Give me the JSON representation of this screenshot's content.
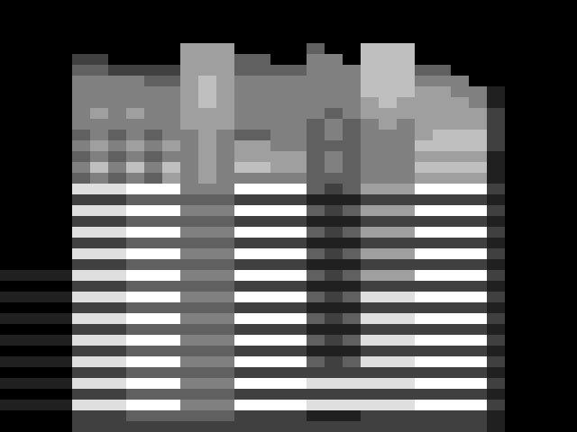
{
  "chart_data": {
    "type": "heatmap",
    "color": "gray",
    "tick_labels": false,
    "cells": [
      [
        0,
        0,
        0,
        0,
        0,
        0,
        0,
        0,
        0,
        0,
        0,
        0,
        0,
        0,
        0,
        0,
        0,
        0,
        0,
        0,
        0,
        0,
        0,
        0,
        0,
        0,
        0,
        0,
        0,
        0,
        0,
        0
      ],
      [
        0,
        0,
        0,
        0,
        0,
        0,
        0,
        0,
        0,
        0,
        0,
        0,
        0,
        0,
        0,
        0,
        0,
        0,
        0,
        0,
        0,
        0,
        0,
        0,
        0,
        0,
        0,
        0,
        0,
        0,
        0,
        0
      ],
      [
        0,
        0,
        0,
        0,
        0,
        0,
        0,
        0,
        0,
        0,
        0,
        0,
        0,
        0,
        0,
        0,
        0,
        0,
        0,
        0,
        0,
        0,
        0,
        0,
        0,
        0,
        0,
        0,
        0,
        0,
        0,
        0
      ],
      [
        0,
        0,
        0,
        0,
        0,
        0,
        0,
        0,
        0,
        0,
        0,
        0,
        0,
        0,
        0,
        0,
        0,
        0,
        0,
        0,
        0,
        0,
        0,
        0,
        0,
        0,
        0,
        0,
        0,
        0,
        0,
        0
      ],
      [
        0,
        0,
        0,
        0,
        0,
        0,
        0,
        0,
        0,
        0,
        5,
        5,
        5,
        0,
        0,
        0,
        0,
        3,
        0,
        0,
        6,
        6,
        6,
        0,
        0,
        0,
        0,
        0,
        0,
        0,
        0,
        0
      ],
      [
        0,
        0,
        0,
        0,
        2,
        2,
        0,
        0,
        0,
        0,
        5,
        5,
        5,
        3,
        3,
        0,
        0,
        4,
        4,
        0,
        6,
        6,
        6,
        0,
        0,
        0,
        0,
        0,
        0,
        0,
        0,
        0
      ],
      [
        0,
        0,
        0,
        0,
        3,
        3,
        2,
        2,
        2,
        2,
        5,
        5,
        5,
        3,
        3,
        3,
        3,
        4,
        4,
        4,
        6,
        6,
        6,
        3,
        3,
        0,
        0,
        0,
        0,
        0,
        0,
        0
      ],
      [
        0,
        0,
        0,
        0,
        4,
        4,
        4,
        4,
        3,
        3,
        5,
        6,
        5,
        4,
        4,
        4,
        4,
        4,
        4,
        4,
        6,
        6,
        6,
        4,
        4,
        4,
        0,
        0,
        0,
        0,
        0,
        0
      ],
      [
        0,
        0,
        0,
        0,
        4,
        4,
        4,
        4,
        4,
        4,
        5,
        6,
        5,
        4,
        4,
        4,
        4,
        4,
        4,
        4,
        6,
        6,
        6,
        5,
        5,
        4,
        4,
        1,
        0,
        0,
        0,
        0
      ],
      [
        0,
        0,
        0,
        0,
        4,
        4,
        4,
        4,
        4,
        4,
        5,
        6,
        5,
        4,
        4,
        4,
        4,
        4,
        4,
        4,
        5,
        6,
        5,
        5,
        5,
        5,
        4,
        1,
        0,
        0,
        0,
        0
      ],
      [
        0,
        0,
        0,
        0,
        4,
        5,
        4,
        5,
        4,
        4,
        5,
        5,
        5,
        4,
        4,
        4,
        4,
        4,
        3,
        4,
        5,
        5,
        5,
        5,
        5,
        5,
        5,
        2,
        0,
        0,
        0,
        0
      ],
      [
        0,
        0,
        0,
        0,
        4,
        4,
        4,
        4,
        4,
        4,
        5,
        5,
        5,
        4,
        4,
        4,
        4,
        3,
        4,
        3,
        4,
        5,
        4,
        5,
        5,
        5,
        5,
        2,
        0,
        0,
        0,
        0
      ],
      [
        0,
        0,
        0,
        0,
        3,
        4,
        3,
        4,
        3,
        4,
        4,
        5,
        4,
        3,
        3,
        4,
        4,
        3,
        4,
        3,
        4,
        4,
        4,
        5,
        6,
        6,
        6,
        2,
        0,
        0,
        0,
        0
      ],
      [
        0,
        0,
        0,
        0,
        4,
        5,
        4,
        5,
        4,
        5,
        4,
        5,
        4,
        5,
        5,
        4,
        4,
        3,
        3,
        3,
        4,
        4,
        4,
        6,
        6,
        6,
        6,
        2,
        0,
        0,
        0,
        0
      ],
      [
        0,
        0,
        0,
        0,
        3,
        4,
        3,
        4,
        3,
        4,
        4,
        5,
        4,
        5,
        5,
        5,
        5,
        3,
        4,
        3,
        4,
        4,
        4,
        5,
        5,
        5,
        5,
        1,
        0,
        0,
        0,
        0
      ],
      [
        0,
        0,
        0,
        0,
        4,
        6,
        4,
        6,
        4,
        6,
        4,
        5,
        4,
        6,
        6,
        5,
        5,
        3,
        4,
        3,
        4,
        4,
        4,
        6,
        6,
        6,
        6,
        1,
        0,
        0,
        0,
        0
      ],
      [
        0,
        0,
        0,
        0,
        3,
        4,
        3,
        4,
        3,
        5,
        4,
        5,
        4,
        4,
        4,
        4,
        4,
        3,
        3,
        3,
        4,
        4,
        4,
        5,
        5,
        5,
        5,
        1,
        0,
        0,
        0,
        0
      ],
      [
        0,
        0,
        0,
        0,
        7,
        7,
        7,
        8,
        8,
        8,
        4,
        4,
        4,
        8,
        8,
        8,
        8,
        3,
        2,
        3,
        5,
        5,
        5,
        8,
        8,
        8,
        8,
        2,
        0,
        0,
        0,
        0
      ],
      [
        0,
        0,
        0,
        0,
        2,
        2,
        2,
        3,
        3,
        3,
        3,
        3,
        3,
        2,
        2,
        2,
        2,
        1,
        1,
        1,
        2,
        2,
        2,
        2,
        2,
        2,
        2,
        1,
        0,
        0,
        0,
        0
      ],
      [
        0,
        0,
        0,
        0,
        7,
        7,
        7,
        8,
        8,
        8,
        4,
        4,
        4,
        8,
        8,
        8,
        8,
        3,
        2,
        3,
        5,
        5,
        5,
        8,
        8,
        8,
        8,
        2,
        0,
        0,
        0,
        0
      ],
      [
        0,
        0,
        0,
        0,
        2,
        2,
        2,
        3,
        3,
        3,
        3,
        3,
        3,
        2,
        2,
        2,
        2,
        1,
        1,
        1,
        2,
        2,
        2,
        2,
        2,
        2,
        2,
        1,
        0,
        0,
        0,
        0
      ],
      [
        0,
        0,
        0,
        0,
        7,
        7,
        7,
        8,
        8,
        8,
        4,
        4,
        4,
        8,
        8,
        8,
        8,
        3,
        2,
        3,
        5,
        5,
        5,
        8,
        8,
        8,
        8,
        2,
        0,
        0,
        0,
        0
      ],
      [
        0,
        0,
        0,
        0,
        2,
        2,
        2,
        3,
        3,
        3,
        3,
        3,
        3,
        2,
        2,
        2,
        2,
        1,
        1,
        1,
        2,
        2,
        2,
        2,
        2,
        2,
        2,
        1,
        0,
        0,
        0,
        0
      ],
      [
        0,
        0,
        0,
        0,
        7,
        7,
        7,
        8,
        8,
        8,
        4,
        4,
        4,
        8,
        8,
        8,
        8,
        3,
        2,
        3,
        5,
        5,
        5,
        8,
        8,
        8,
        8,
        2,
        0,
        0,
        0,
        0
      ],
      [
        0,
        0,
        0,
        0,
        2,
        2,
        2,
        3,
        3,
        3,
        3,
        3,
        3,
        2,
        2,
        2,
        2,
        1,
        1,
        1,
        2,
        2,
        2,
        2,
        2,
        2,
        2,
        1,
        0,
        0,
        0,
        0
      ],
      [
        1,
        1,
        1,
        1,
        7,
        7,
        7,
        8,
        8,
        8,
        4,
        4,
        4,
        8,
        8,
        8,
        8,
        3,
        2,
        3,
        5,
        5,
        5,
        8,
        8,
        8,
        8,
        2,
        0,
        0,
        0,
        0
      ],
      [
        0,
        0,
        0,
        0,
        2,
        2,
        2,
        3,
        3,
        3,
        3,
        3,
        3,
        2,
        2,
        2,
        2,
        1,
        1,
        1,
        2,
        2,
        2,
        2,
        2,
        2,
        2,
        1,
        0,
        0,
        0,
        0
      ],
      [
        1,
        1,
        1,
        1,
        7,
        7,
        7,
        8,
        8,
        8,
        4,
        4,
        4,
        8,
        8,
        8,
        8,
        3,
        2,
        3,
        7,
        7,
        7,
        8,
        8,
        8,
        8,
        2,
        0,
        0,
        0,
        0
      ],
      [
        0,
        0,
        0,
        0,
        2,
        2,
        2,
        3,
        3,
        3,
        3,
        3,
        3,
        2,
        2,
        2,
        2,
        1,
        1,
        1,
        2,
        2,
        2,
        2,
        2,
        2,
        2,
        1,
        0,
        0,
        0,
        0
      ],
      [
        1,
        1,
        1,
        1,
        7,
        7,
        7,
        8,
        8,
        8,
        4,
        4,
        4,
        8,
        8,
        8,
        8,
        3,
        2,
        3,
        7,
        7,
        7,
        8,
        8,
        8,
        8,
        2,
        0,
        0,
        0,
        0
      ],
      [
        0,
        0,
        0,
        0,
        2,
        2,
        2,
        3,
        3,
        3,
        3,
        3,
        3,
        2,
        2,
        2,
        2,
        1,
        1,
        1,
        2,
        2,
        2,
        2,
        2,
        2,
        2,
        1,
        0,
        0,
        0,
        0
      ],
      [
        1,
        1,
        1,
        1,
        7,
        7,
        7,
        8,
        8,
        8,
        4,
        4,
        4,
        8,
        8,
        8,
        8,
        3,
        2,
        3,
        7,
        7,
        7,
        8,
        8,
        8,
        8,
        2,
        0,
        0,
        0,
        0
      ],
      [
        0,
        0,
        0,
        0,
        2,
        2,
        2,
        3,
        3,
        3,
        3,
        3,
        3,
        2,
        2,
        2,
        2,
        1,
        1,
        1,
        2,
        2,
        2,
        2,
        2,
        2,
        2,
        1,
        0,
        0,
        0,
        0
      ],
      [
        1,
        1,
        1,
        1,
        7,
        7,
        7,
        8,
        8,
        8,
        4,
        4,
        4,
        8,
        8,
        8,
        8,
        3,
        2,
        3,
        7,
        7,
        7,
        8,
        8,
        8,
        8,
        2,
        0,
        0,
        0,
        0
      ],
      [
        0,
        0,
        0,
        0,
        2,
        2,
        2,
        3,
        3,
        3,
        3,
        3,
        3,
        2,
        2,
        2,
        2,
        2,
        2,
        2,
        2,
        2,
        2,
        2,
        2,
        2,
        2,
        1,
        0,
        0,
        0,
        0
      ],
      [
        1,
        1,
        1,
        1,
        7,
        7,
        7,
        8,
        8,
        8,
        4,
        4,
        4,
        8,
        8,
        8,
        8,
        7,
        7,
        7,
        7,
        7,
        7,
        8,
        8,
        8,
        8,
        2,
        0,
        0,
        0,
        0
      ],
      [
        0,
        0,
        0,
        0,
        2,
        2,
        2,
        3,
        3,
        3,
        3,
        3,
        3,
        2,
        2,
        2,
        2,
        2,
        2,
        2,
        2,
        2,
        2,
        2,
        2,
        2,
        2,
        1,
        0,
        0,
        0,
        0
      ],
      [
        1,
        1,
        1,
        1,
        7,
        7,
        7,
        8,
        8,
        8,
        4,
        4,
        4,
        8,
        8,
        8,
        8,
        7,
        7,
        7,
        7,
        7,
        7,
        8,
        8,
        8,
        8,
        2,
        0,
        0,
        0,
        0
      ],
      [
        0,
        0,
        0,
        0,
        2,
        2,
        2,
        3,
        3,
        3,
        3,
        3,
        3,
        2,
        2,
        2,
        2,
        1,
        1,
        1,
        2,
        2,
        2,
        2,
        2,
        2,
        2,
        1,
        0,
        0,
        0,
        0
      ],
      [
        0,
        0,
        0,
        0,
        2,
        2,
        2,
        2,
        2,
        2,
        2,
        2,
        2,
        2,
        2,
        2,
        2,
        2,
        2,
        2,
        2,
        2,
        2,
        2,
        2,
        2,
        2,
        1,
        0,
        0,
        0,
        0
      ]
    ]
  }
}
